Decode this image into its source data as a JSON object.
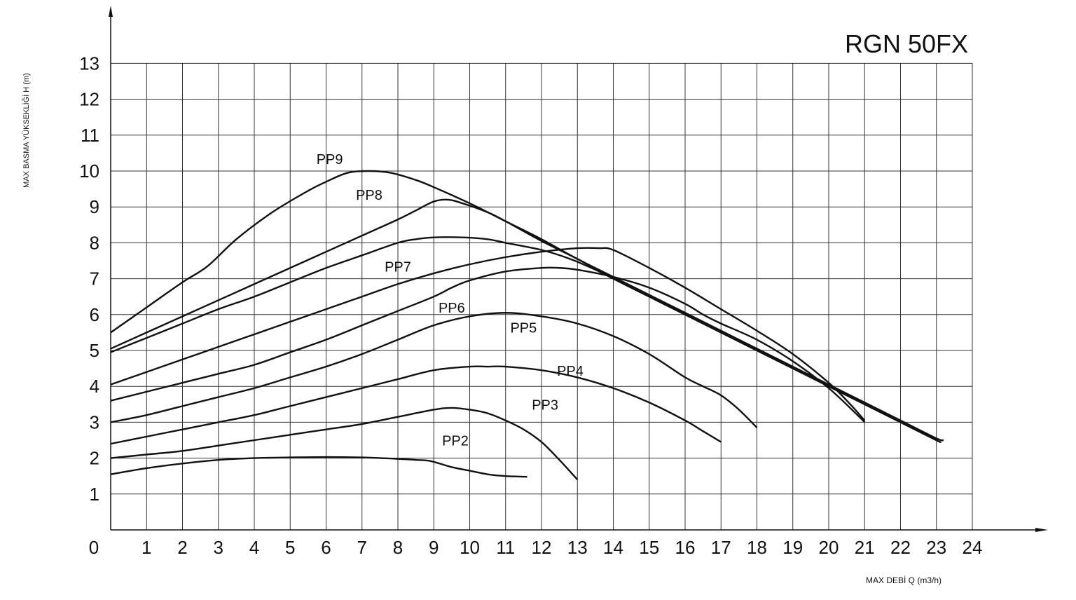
{
  "chart_data": {
    "type": "line",
    "title": "RGN 50FX",
    "xlabel": "MAX DEBİ  Q (m3/h)",
    "ylabel": "MAX BASMA YÜKSEKLİĞİ H (m)",
    "xlim": [
      0,
      24
    ],
    "ylim": [
      0,
      13
    ],
    "x_ticks": [
      "0",
      "1",
      "2",
      "3",
      "4",
      "5",
      "6",
      "7",
      "8",
      "9",
      "10",
      "11",
      "12",
      "13",
      "14",
      "15",
      "16",
      "17",
      "18",
      "19",
      "20",
      "21",
      "22",
      "23",
      "24"
    ],
    "y_ticks": [
      "1",
      "2",
      "3",
      "4",
      "5",
      "6",
      "7",
      "8",
      "9",
      "10",
      "11",
      "12",
      "13"
    ],
    "grid": true,
    "series": [
      {
        "name": "PP9",
        "label_at": [
          6.1,
          10.2
        ],
        "points": [
          [
            0,
            5.5
          ],
          [
            1,
            6.2
          ],
          [
            2,
            6.9
          ],
          [
            2.7,
            7.35
          ],
          [
            3.5,
            8.1
          ],
          [
            4.5,
            8.85
          ],
          [
            5.5,
            9.45
          ],
          [
            6,
            9.7
          ],
          [
            6.6,
            9.95
          ],
          [
            7.2,
            10
          ],
          [
            7.8,
            9.95
          ],
          [
            8.5,
            9.75
          ],
          [
            9,
            9.55
          ],
          [
            10,
            9.1
          ],
          [
            11,
            8.6
          ],
          [
            12,
            8.1
          ],
          [
            13,
            7.55
          ],
          [
            14,
            7.05
          ],
          [
            15,
            6.55
          ],
          [
            16,
            6.05
          ],
          [
            17,
            5.55
          ],
          [
            18,
            5.05
          ],
          [
            19,
            4.55
          ],
          [
            20,
            4.05
          ],
          [
            21,
            3.55
          ],
          [
            22,
            3.05
          ],
          [
            23,
            2.55
          ],
          [
            23.2,
            2.5
          ]
        ]
      },
      {
        "name": "PP8",
        "label_at": [
          7.2,
          9.2
        ],
        "points": [
          [
            0,
            5.05
          ],
          [
            1,
            5.5
          ],
          [
            2,
            5.95
          ],
          [
            3,
            6.4
          ],
          [
            4,
            6.85
          ],
          [
            5,
            7.3
          ],
          [
            6,
            7.75
          ],
          [
            7,
            8.2
          ],
          [
            8,
            8.65
          ],
          [
            8.5,
            8.9
          ],
          [
            9,
            9.15
          ],
          [
            9.4,
            9.2
          ],
          [
            9.8,
            9.1
          ],
          [
            10.5,
            8.85
          ],
          [
            11,
            8.6
          ],
          [
            12,
            8.05
          ],
          [
            13,
            7.55
          ],
          [
            14,
            7.0
          ],
          [
            15,
            6.5
          ],
          [
            16,
            6.0
          ],
          [
            17,
            5.5
          ],
          [
            18,
            5.0
          ],
          [
            19,
            4.5
          ],
          [
            20,
            4.0
          ],
          [
            21,
            3.5
          ],
          [
            22,
            3.0
          ],
          [
            23,
            2.5
          ],
          [
            23.1,
            2.45
          ]
        ]
      },
      {
        "name": "PP7",
        "label_at": [
          8.0,
          7.2
        ],
        "points": [
          [
            0,
            4.95
          ],
          [
            1,
            5.35
          ],
          [
            2,
            5.75
          ],
          [
            3,
            6.15
          ],
          [
            4,
            6.5
          ],
          [
            5,
            6.9
          ],
          [
            6,
            7.3
          ],
          [
            7,
            7.65
          ],
          [
            8,
            8.0
          ],
          [
            8.5,
            8.1
          ],
          [
            9,
            8.15
          ],
          [
            9.8,
            8.15
          ],
          [
            10.5,
            8.1
          ],
          [
            11,
            8.0
          ],
          [
            12,
            7.8
          ],
          [
            12.8,
            7.55
          ],
          [
            13.5,
            7.25
          ],
          [
            14,
            7.0
          ],
          [
            15,
            6.5
          ],
          [
            16,
            6.0
          ],
          [
            17,
            5.5
          ],
          [
            18,
            5.0
          ],
          [
            19,
            4.5
          ],
          [
            20,
            4.0
          ],
          [
            21,
            3.5
          ],
          [
            22,
            3.0
          ],
          [
            23,
            2.5
          ]
        ]
      },
      {
        "name": "PP6",
        "label_at": [
          9.5,
          6.05
        ],
        "points": [
          [
            0,
            4.05
          ],
          [
            1,
            4.4
          ],
          [
            2,
            4.75
          ],
          [
            3,
            5.1
          ],
          [
            4,
            5.45
          ],
          [
            5,
            5.8
          ],
          [
            6,
            6.15
          ],
          [
            7,
            6.5
          ],
          [
            8,
            6.85
          ],
          [
            9,
            7.15
          ],
          [
            10,
            7.4
          ],
          [
            11,
            7.6
          ],
          [
            12,
            7.75
          ],
          [
            13,
            7.85
          ],
          [
            13.6,
            7.85
          ],
          [
            14,
            7.8
          ],
          [
            15,
            7.3
          ],
          [
            16,
            6.75
          ],
          [
            17,
            6.15
          ],
          [
            18,
            5.55
          ],
          [
            19,
            4.9
          ],
          [
            20,
            4.1
          ],
          [
            20.6,
            3.5
          ],
          [
            21,
            3.05
          ]
        ]
      },
      {
        "name": "PP5",
        "label_at": [
          11.5,
          5.5
        ],
        "points": [
          [
            0,
            3.6
          ],
          [
            1,
            3.85
          ],
          [
            2,
            4.1
          ],
          [
            3,
            4.35
          ],
          [
            4,
            4.6
          ],
          [
            5,
            4.95
          ],
          [
            6,
            5.3
          ],
          [
            7,
            5.7
          ],
          [
            8,
            6.1
          ],
          [
            9,
            6.5
          ],
          [
            9.5,
            6.75
          ],
          [
            10,
            6.95
          ],
          [
            11,
            7.2
          ],
          [
            12,
            7.3
          ],
          [
            12.5,
            7.3
          ],
          [
            13,
            7.25
          ],
          [
            14,
            7.05
          ],
          [
            15,
            6.75
          ],
          [
            16,
            6.3
          ],
          [
            16.5,
            6.0
          ],
          [
            17,
            5.75
          ],
          [
            18,
            5.3
          ],
          [
            19,
            4.7
          ],
          [
            20,
            3.95
          ],
          [
            20.8,
            3.2
          ],
          [
            21,
            3.0
          ]
        ]
      },
      {
        "name": "PP4",
        "label_at": [
          12.8,
          4.3
        ],
        "points": [
          [
            0,
            3.0
          ],
          [
            1,
            3.2
          ],
          [
            2,
            3.45
          ],
          [
            3,
            3.7
          ],
          [
            4,
            3.95
          ],
          [
            5,
            4.25
          ],
          [
            6,
            4.55
          ],
          [
            7,
            4.9
          ],
          [
            8,
            5.3
          ],
          [
            9,
            5.7
          ],
          [
            10,
            5.95
          ],
          [
            11,
            6.05
          ],
          [
            12,
            5.95
          ],
          [
            13,
            5.75
          ],
          [
            14,
            5.4
          ],
          [
            15,
            4.9
          ],
          [
            16,
            4.25
          ],
          [
            16.5,
            4.0
          ],
          [
            17,
            3.75
          ],
          [
            17.5,
            3.35
          ],
          [
            18,
            2.85
          ]
        ]
      },
      {
        "name": "PP3",
        "label_at": [
          12.1,
          3.35
        ],
        "points": [
          [
            0,
            2.4
          ],
          [
            1,
            2.6
          ],
          [
            2,
            2.8
          ],
          [
            3,
            3.0
          ],
          [
            4,
            3.2
          ],
          [
            5,
            3.45
          ],
          [
            6,
            3.7
          ],
          [
            7,
            3.95
          ],
          [
            8,
            4.2
          ],
          [
            9,
            4.45
          ],
          [
            10,
            4.55
          ],
          [
            10.5,
            4.55
          ],
          [
            11,
            4.55
          ],
          [
            12,
            4.45
          ],
          [
            13,
            4.25
          ],
          [
            14,
            3.95
          ],
          [
            15,
            3.55
          ],
          [
            16,
            3.05
          ],
          [
            16.5,
            2.75
          ],
          [
            17,
            2.45
          ]
        ]
      },
      {
        "name": "PP2",
        "label_at": [
          9.6,
          2.35
        ],
        "points": [
          [
            0,
            2.0
          ],
          [
            1,
            2.1
          ],
          [
            2,
            2.2
          ],
          [
            3,
            2.35
          ],
          [
            4,
            2.5
          ],
          [
            5,
            2.65
          ],
          [
            6,
            2.8
          ],
          [
            7,
            2.95
          ],
          [
            8,
            3.15
          ],
          [
            9,
            3.35
          ],
          [
            9.5,
            3.4
          ],
          [
            10,
            3.35
          ],
          [
            10.5,
            3.25
          ],
          [
            11,
            3.05
          ],
          [
            11.5,
            2.8
          ],
          [
            12,
            2.45
          ],
          [
            12.5,
            1.95
          ],
          [
            13,
            1.4
          ]
        ]
      },
      {
        "name": "",
        "points": [
          [
            0,
            1.55
          ],
          [
            1,
            1.72
          ],
          [
            2,
            1.85
          ],
          [
            3,
            1.95
          ],
          [
            4,
            2.0
          ],
          [
            5,
            2.02
          ],
          [
            6,
            2.03
          ],
          [
            7,
            2.02
          ],
          [
            8,
            1.98
          ],
          [
            8.5,
            1.95
          ],
          [
            8.9,
            1.92
          ],
          [
            9.5,
            1.75
          ],
          [
            10,
            1.65
          ],
          [
            10.5,
            1.55
          ],
          [
            11,
            1.5
          ],
          [
            11.6,
            1.48
          ]
        ]
      }
    ]
  }
}
